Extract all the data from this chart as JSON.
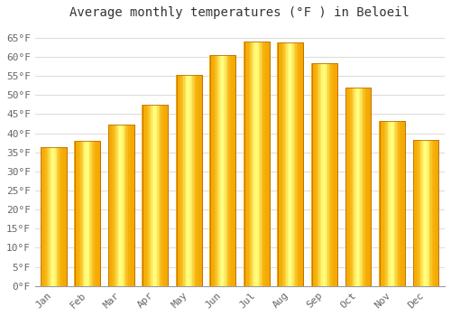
{
  "title": "Average monthly temperatures (°F ) in Beloeil",
  "months": [
    "Jan",
    "Feb",
    "Mar",
    "Apr",
    "May",
    "Jun",
    "Jul",
    "Aug",
    "Sep",
    "Oct",
    "Nov",
    "Dec"
  ],
  "values": [
    36.3,
    37.9,
    42.3,
    47.5,
    55.2,
    60.4,
    64.0,
    63.7,
    58.3,
    52.0,
    43.3,
    38.3
  ],
  "bar_color_left": "#E8890A",
  "bar_color_center": "#FFD040",
  "bar_color_right": "#E8890A",
  "bar_edge_color": "#C07000",
  "ylim": [
    0,
    68
  ],
  "yticks": [
    0,
    5,
    10,
    15,
    20,
    25,
    30,
    35,
    40,
    45,
    50,
    55,
    60,
    65
  ],
  "ytick_labels": [
    "0°F",
    "5°F",
    "10°F",
    "15°F",
    "20°F",
    "25°F",
    "30°F",
    "35°F",
    "40°F",
    "45°F",
    "50°F",
    "55°F",
    "60°F",
    "65°F"
  ],
  "background_color": "#ffffff",
  "grid_color": "#dddddd",
  "title_fontsize": 10,
  "tick_fontsize": 8,
  "font_family": "monospace"
}
